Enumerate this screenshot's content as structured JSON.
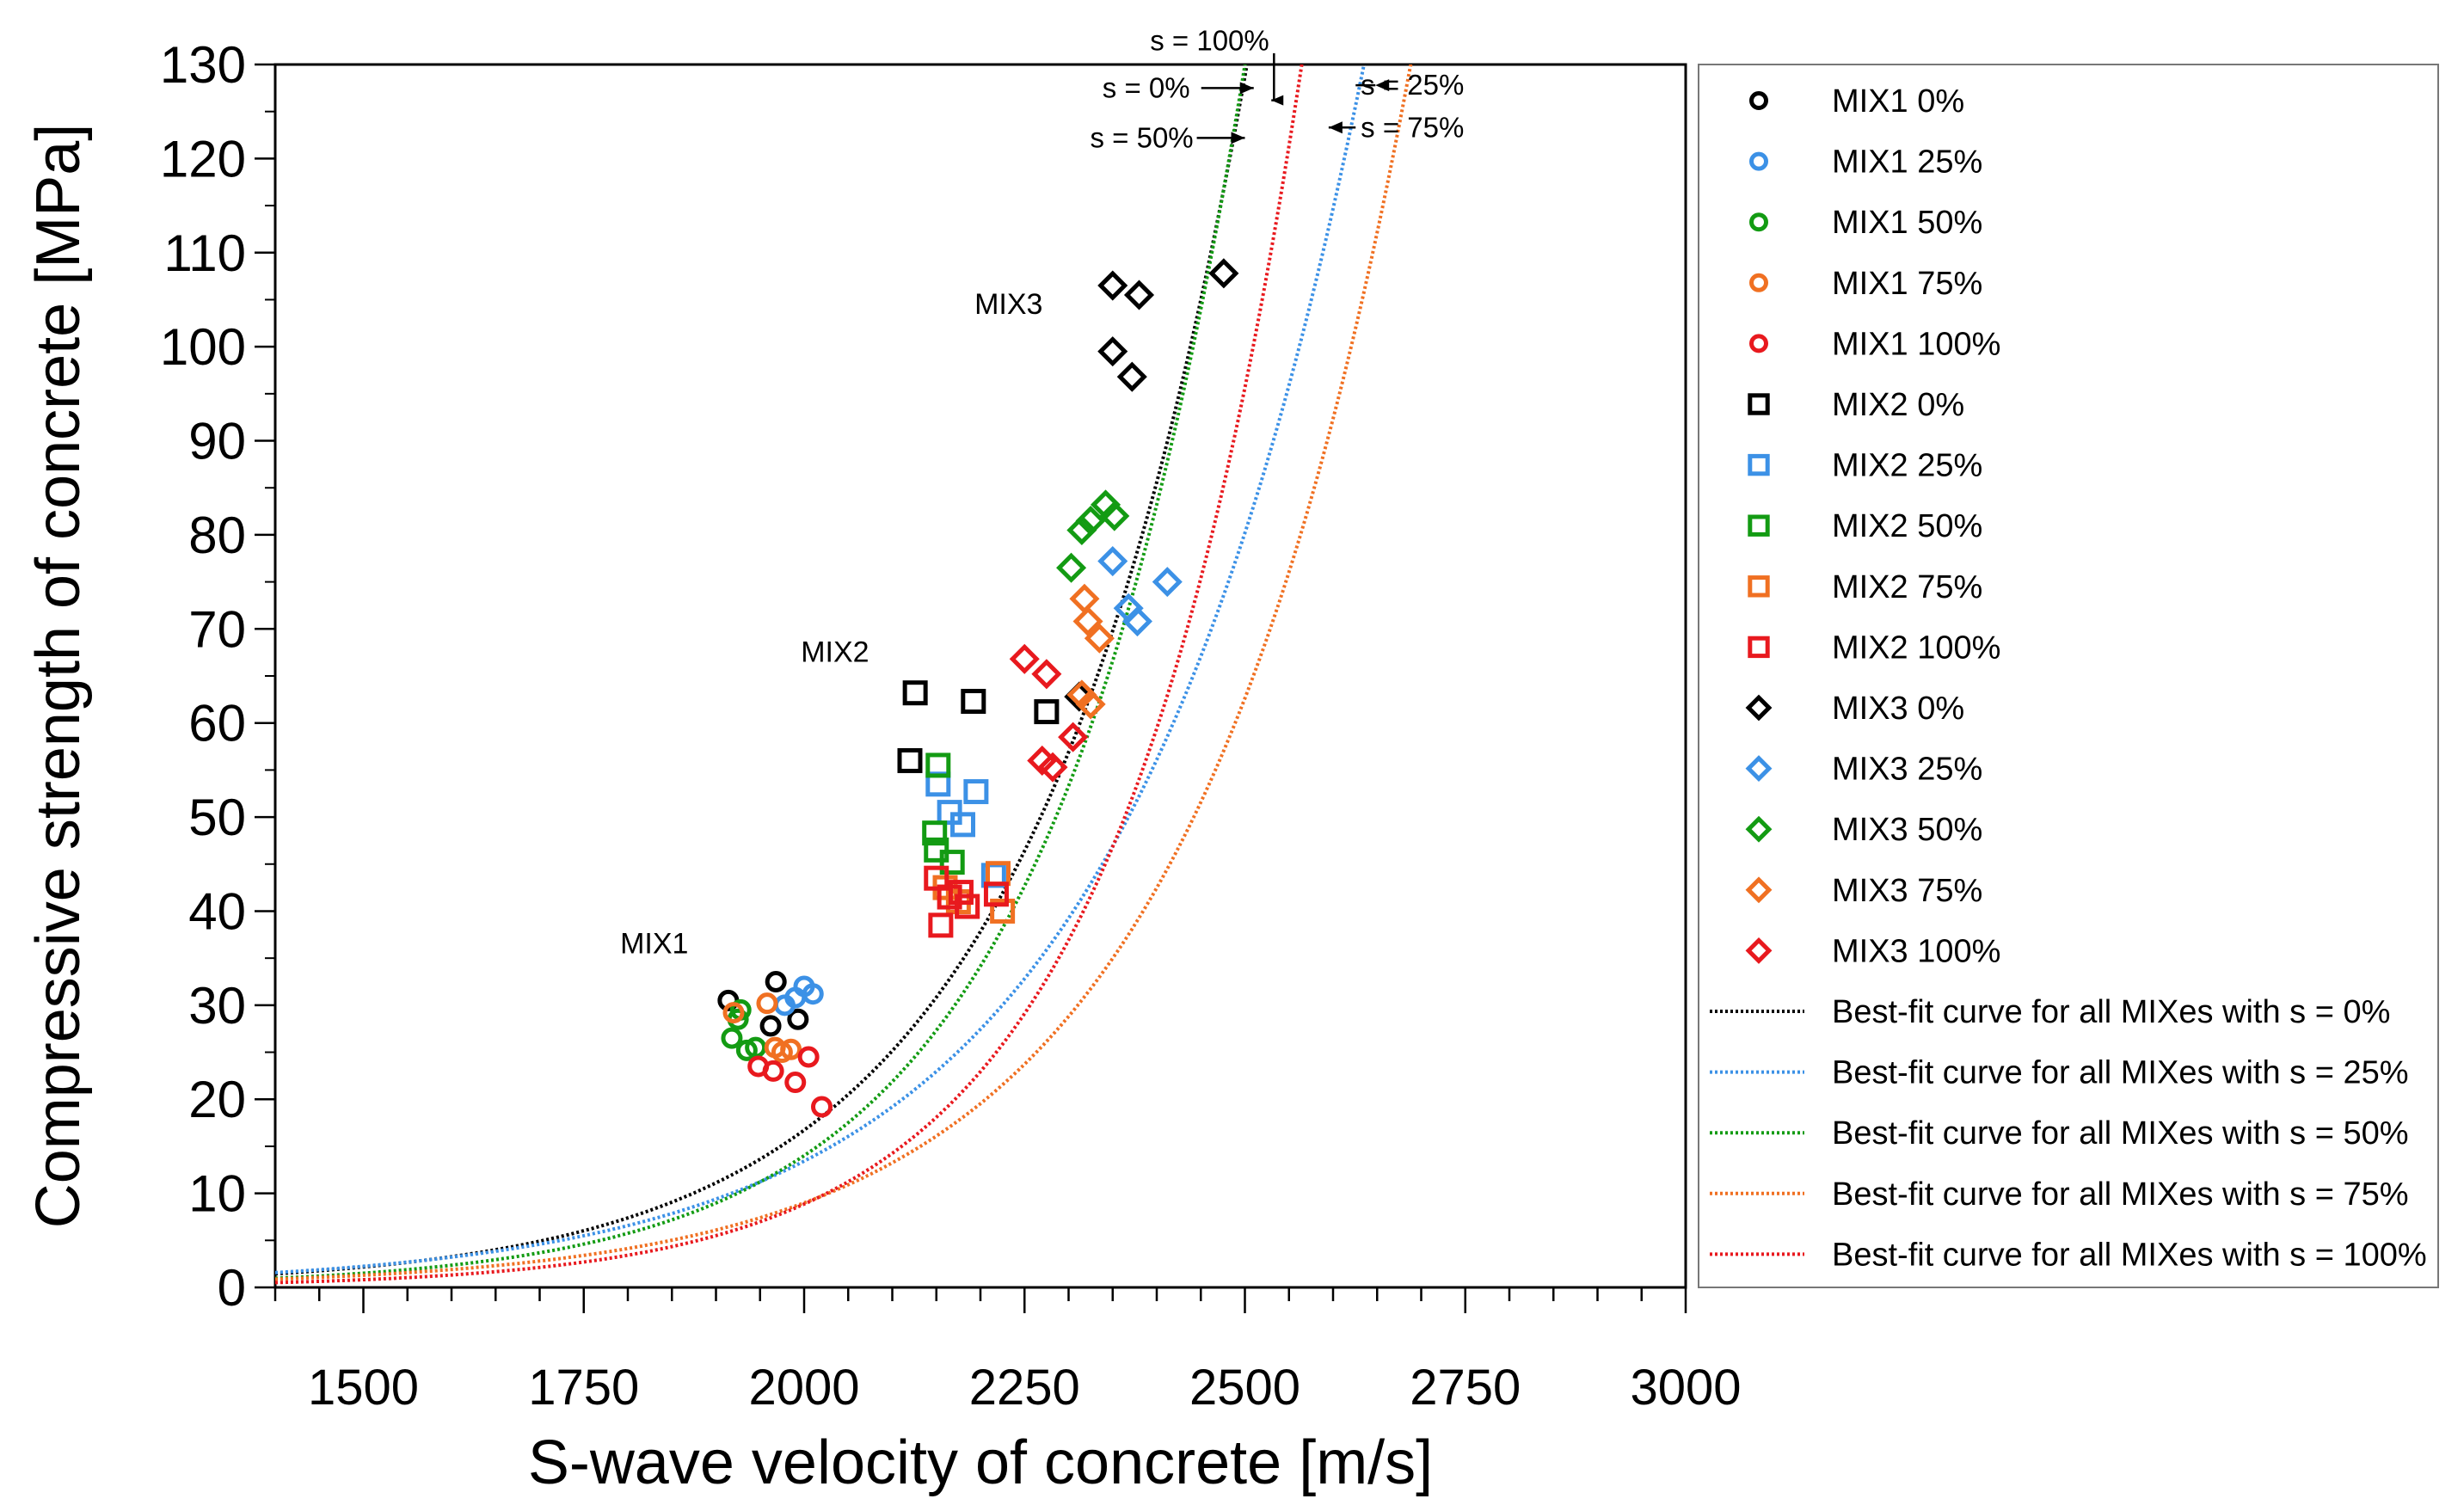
{
  "chart_data": {
    "type": "scatter",
    "xlabel": "S-wave velocity of concrete [m/s]",
    "ylabel": "Compressive strength of concrete [MPa]",
    "xlim": [
      1400,
      3000
    ],
    "ylim": [
      0,
      130
    ],
    "xticks": [
      1500,
      1750,
      2000,
      2250,
      2500,
      2750,
      3000
    ],
    "yticks": [
      0,
      10,
      20,
      30,
      40,
      50,
      60,
      70,
      80,
      90,
      100,
      110,
      120,
      130
    ],
    "x_minor_step": 50,
    "annotations": [
      {
        "text": "MIX1",
        "x": 1830,
        "y": 35.5
      },
      {
        "text": "MIX2",
        "x": 2035,
        "y": 66.5
      },
      {
        "text": "MIX3",
        "x": 2232,
        "y": 103.5
      }
    ],
    "curve_callouts": [
      {
        "text": "s = 100%",
        "text_x": 2460,
        "text_y": 132.5,
        "arrow_to_x": 2530,
        "arrow_to_y": 126.2
      },
      {
        "text": "s = 0%",
        "text_x": 2388,
        "text_y": 127.5,
        "arrow_to_x": 2510,
        "arrow_to_y": 127.5
      },
      {
        "text": "s = 50%",
        "text_x": 2383,
        "text_y": 122.2,
        "arrow_to_x": 2500,
        "arrow_to_y": 122.2
      },
      {
        "text": "s = 25%",
        "text_x": 2690,
        "text_y": 127.8,
        "arrow_to_x": 2648,
        "arrow_to_y": 127.8
      },
      {
        "text": "s = 75%",
        "text_x": 2690,
        "text_y": 123.3,
        "arrow_to_x": 2595,
        "arrow_to_y": 123.3
      }
    ],
    "series": [
      {
        "name": "MIX1 0%",
        "marker": "circle",
        "color": "#000000",
        "points": [
          [
            1914,
            30.5
          ],
          [
            1968,
            32.5
          ],
          [
            1993,
            28.5
          ],
          [
            1962,
            27.8
          ]
        ]
      },
      {
        "name": "MIX1 25%",
        "marker": "circle",
        "color": "#3c91e6",
        "points": [
          [
            1990,
            30.8
          ],
          [
            2000,
            32.0
          ],
          [
            2010,
            31.2
          ],
          [
            1978,
            30.0
          ]
        ]
      },
      {
        "name": "MIX1 50%",
        "marker": "circle",
        "color": "#139b13",
        "points": [
          [
            1918,
            26.5
          ],
          [
            1928,
            29.5
          ],
          [
            1935,
            25.2
          ],
          [
            1945,
            25.5
          ],
          [
            1925,
            28.5
          ]
        ]
      },
      {
        "name": "MIX1 75%",
        "marker": "circle",
        "color": "#f07022",
        "points": [
          [
            1920,
            29.2
          ],
          [
            1958,
            30.2
          ],
          [
            1967,
            25.5
          ],
          [
            1975,
            25.0
          ],
          [
            1985,
            25.3
          ]
        ]
      },
      {
        "name": "MIX1 100%",
        "marker": "circle",
        "color": "#e8191e",
        "points": [
          [
            1948,
            23.5
          ],
          [
            1965,
            23.0
          ],
          [
            1990,
            21.8
          ],
          [
            2005,
            24.5
          ],
          [
            2020,
            19.2
          ]
        ]
      },
      {
        "name": "MIX2 0%",
        "marker": "square",
        "color": "#000000",
        "points": [
          [
            2120,
            56.0
          ],
          [
            2126,
            63.2
          ],
          [
            2192,
            62.3
          ],
          [
            2275,
            61.2
          ]
        ]
      },
      {
        "name": "MIX2 25%",
        "marker": "square",
        "color": "#3c91e6",
        "points": [
          [
            2152,
            53.5
          ],
          [
            2165,
            50.5
          ],
          [
            2180,
            49.2
          ],
          [
            2195,
            52.7
          ],
          [
            2215,
            43.8
          ]
        ]
      },
      {
        "name": "MIX2 50%",
        "marker": "square",
        "color": "#139b13",
        "points": [
          [
            2148,
            48.3
          ],
          [
            2152,
            55.5
          ],
          [
            2168,
            45.2
          ],
          [
            2150,
            46.5
          ]
        ]
      },
      {
        "name": "MIX2 75%",
        "marker": "square",
        "color": "#f07022",
        "points": [
          [
            2160,
            42.5
          ],
          [
            2175,
            41.0
          ],
          [
            2220,
            44.0
          ],
          [
            2225,
            40.0
          ],
          [
            2185,
            40.5
          ]
        ]
      },
      {
        "name": "MIX2 100%",
        "marker": "square",
        "color": "#e8191e",
        "points": [
          [
            2150,
            43.5
          ],
          [
            2155,
            38.5
          ],
          [
            2165,
            41.5
          ],
          [
            2178,
            42.0
          ],
          [
            2185,
            40.5
          ],
          [
            2218,
            41.8
          ]
        ]
      },
      {
        "name": "MIX3 0%",
        "marker": "diamond",
        "color": "#000000",
        "points": [
          [
            2350,
            106.5
          ],
          [
            2380,
            105.5
          ],
          [
            2350,
            99.5
          ],
          [
            2372,
            96.8
          ],
          [
            2476,
            107.8
          ],
          [
            2312,
            62.8
          ]
        ]
      },
      {
        "name": "MIX3 25%",
        "marker": "diamond",
        "color": "#3c91e6",
        "points": [
          [
            2350,
            77.2
          ],
          [
            2368,
            72.2
          ],
          [
            2378,
            70.8
          ],
          [
            2412,
            75.0
          ]
        ]
      },
      {
        "name": "MIX3 50%",
        "marker": "diamond",
        "color": "#139b13",
        "points": [
          [
            2303,
            76.5
          ],
          [
            2315,
            80.5
          ],
          [
            2325,
            81.5
          ],
          [
            2342,
            83.2
          ],
          [
            2352,
            82.0
          ]
        ]
      },
      {
        "name": "MIX3 75%",
        "marker": "diamond",
        "color": "#f07022",
        "points": [
          [
            2318,
            73.2
          ],
          [
            2322,
            70.8
          ],
          [
            2335,
            69.0
          ],
          [
            2315,
            63.0
          ],
          [
            2325,
            62.0
          ]
        ]
      },
      {
        "name": "MIX3 100%",
        "marker": "diamond",
        "color": "#e8191e",
        "points": [
          [
            2250,
            66.8
          ],
          [
            2275,
            65.2
          ],
          [
            2305,
            58.5
          ],
          [
            2270,
            56.0
          ],
          [
            2282,
            55.3
          ]
        ]
      }
    ],
    "curves": [
      {
        "name": "Best-fit curve  for all MIXes with s = 0%",
        "color": "#000000",
        "a": 0.0047525,
        "b": 0.0040828
      },
      {
        "name": "Best-fit curve for all MIXes with s = 25%",
        "color": "#3c91e6",
        "a": 0.010547,
        "b": 0.0035746
      },
      {
        "name": "Best-fit curve for all MIXes with s = 50%",
        "color": "#139b13",
        "a": 0.0018924,
        "b": 0.0044548
      },
      {
        "name": "Best-fit curve for all MIXes with s = 75%",
        "color": "#f07022",
        "a": 0.0038112,
        "b": 0.0038828
      },
      {
        "name": "Best-fit curve for all MIXes with s = 100%",
        "color": "#e8191e",
        "a": 0.00065125,
        "b": 0.0047589
      }
    ]
  }
}
